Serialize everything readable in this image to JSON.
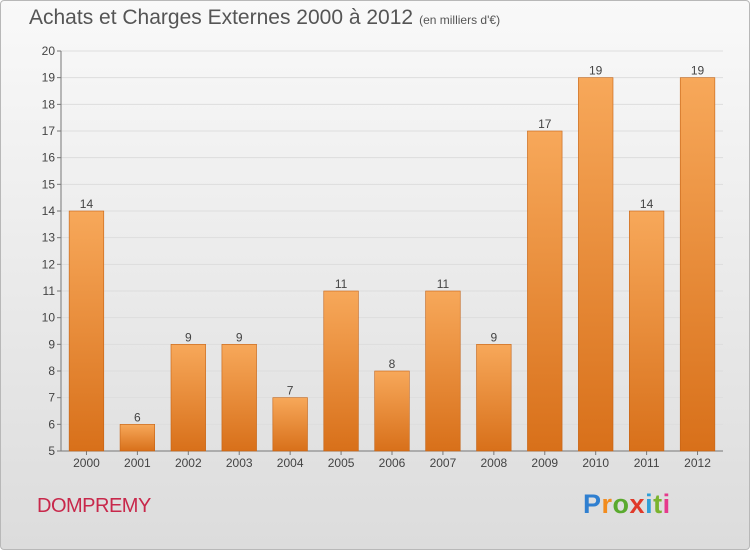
{
  "header": {
    "title": "Achats et Charges Externes 2000 à 2012",
    "subtitle": "(en milliers d'€)"
  },
  "footer": {
    "commune": "DOMPREMY",
    "logo_text": "Proxiti",
    "logo_letters": [
      "P",
      "r",
      "o",
      "x",
      "i",
      "t",
      "i"
    ]
  },
  "colors": {
    "bar_light": "#f7a85a",
    "bar_dark": "#d8701a",
    "commune": "#c8284b",
    "title": "#555555"
  },
  "chart_data": {
    "type": "bar",
    "title": "Achats et Charges Externes 2000 à 2012",
    "subtitle": "(en milliers d'€)",
    "categories": [
      "2000",
      "2001",
      "2002",
      "2003",
      "2004",
      "2005",
      "2006",
      "2007",
      "2008",
      "2009",
      "2010",
      "2011",
      "2012"
    ],
    "values": [
      14,
      6,
      9,
      9,
      7,
      11,
      8,
      11,
      9,
      17,
      19,
      14,
      19
    ],
    "ylim": [
      5,
      20
    ],
    "yticks": [
      5,
      6,
      7,
      8,
      9,
      10,
      11,
      12,
      13,
      14,
      15,
      16,
      17,
      18,
      19,
      20
    ],
    "grid": true,
    "legend": "none"
  }
}
